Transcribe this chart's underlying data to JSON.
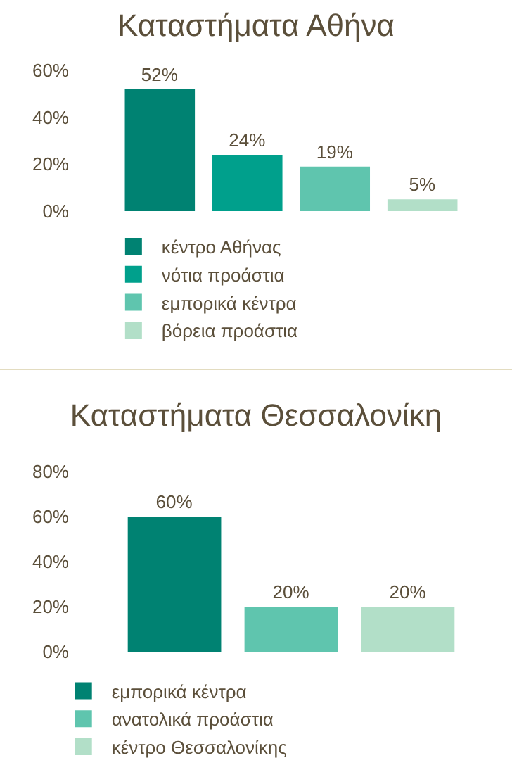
{
  "chart_data": [
    {
      "type": "bar",
      "title": "Καταστήματα Αθήνα",
      "categories": [
        null
      ],
      "series": [
        {
          "name": "κέντρο Αθήνας",
          "color": "#008272",
          "values": [
            52
          ],
          "value_labels": [
            "52%"
          ]
        },
        {
          "name": "νότια προάστια",
          "color": "#00a08c",
          "values": [
            24
          ],
          "value_labels": [
            "24%"
          ]
        },
        {
          "name": "εμπορικά κέντρα",
          "color": "#5fc5ae",
          "values": [
            19
          ],
          "value_labels": [
            "19%"
          ]
        },
        {
          "name": "βόρεια προάστια",
          "color": "#b2dfc8",
          "values": [
            5
          ],
          "value_labels": [
            "5%"
          ]
        }
      ],
      "ylim": [
        0,
        60
      ],
      "yticks": [
        {
          "value": 0,
          "label": "0%"
        },
        {
          "value": 20,
          "label": "20%"
        },
        {
          "value": 40,
          "label": "40%"
        },
        {
          "value": 60,
          "label": "60%"
        }
      ],
      "grid": false,
      "legend": "bottom",
      "tick_labels": "y"
    },
    {
      "type": "bar",
      "title": "Καταστήματα Θεσσαλονίκη",
      "categories": [
        null
      ],
      "series": [
        {
          "name": "εμπορικά κέντρα",
          "color": "#008272",
          "values": [
            60
          ],
          "value_labels": [
            "60%"
          ]
        },
        {
          "name": "ανατολικά προάστια",
          "color": "#5fc5ae",
          "values": [
            20
          ],
          "value_labels": [
            "20%"
          ]
        },
        {
          "name": "κέντρο Θεσσαλονίκης",
          "color": "#b2dfc8",
          "values": [
            20
          ],
          "value_labels": [
            "20%"
          ]
        }
      ],
      "ylim": [
        0,
        80
      ],
      "yticks": [
        {
          "value": 0,
          "label": "0%"
        },
        {
          "value": 20,
          "label": "20%"
        },
        {
          "value": 40,
          "label": "40%"
        },
        {
          "value": 60,
          "label": "60%"
        },
        {
          "value": 80,
          "label": "80%"
        }
      ],
      "grid": false,
      "legend": "bottom",
      "tick_labels": "y"
    }
  ]
}
